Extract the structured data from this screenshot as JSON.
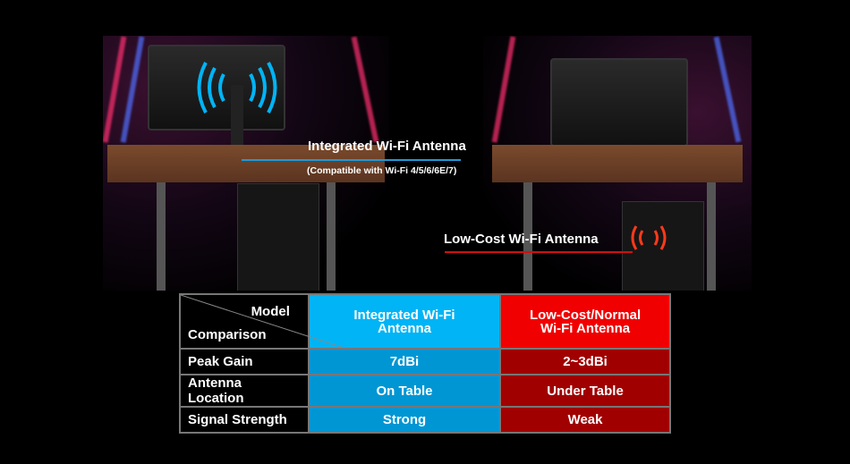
{
  "callouts": {
    "integrated_title": "Integrated Wi-Fi Antenna",
    "integrated_subtitle": "(Compatible with Wi-Fi 4/5/6/6E/7)",
    "lowcost_title": "Low-Cost Wi-Fi Antenna"
  },
  "colors": {
    "integrated_accent": "#00b4f5",
    "lowcost_accent": "#f00000"
  },
  "table": {
    "corner_top": "Model",
    "corner_bottom": "Comparison",
    "columns": [
      "Integrated Wi-Fi Antenna",
      "Low-Cost/Normal Wi-Fi Antenna"
    ],
    "rows": [
      {
        "label": "Peak Gain",
        "integrated": "7dBi",
        "lowcost": "2~3dBi"
      },
      {
        "label": "Antenna Location",
        "integrated": "On Table",
        "lowcost": "Under Table"
      },
      {
        "label": "Signal Strength",
        "integrated": "Strong",
        "lowcost": "Weak"
      }
    ]
  }
}
